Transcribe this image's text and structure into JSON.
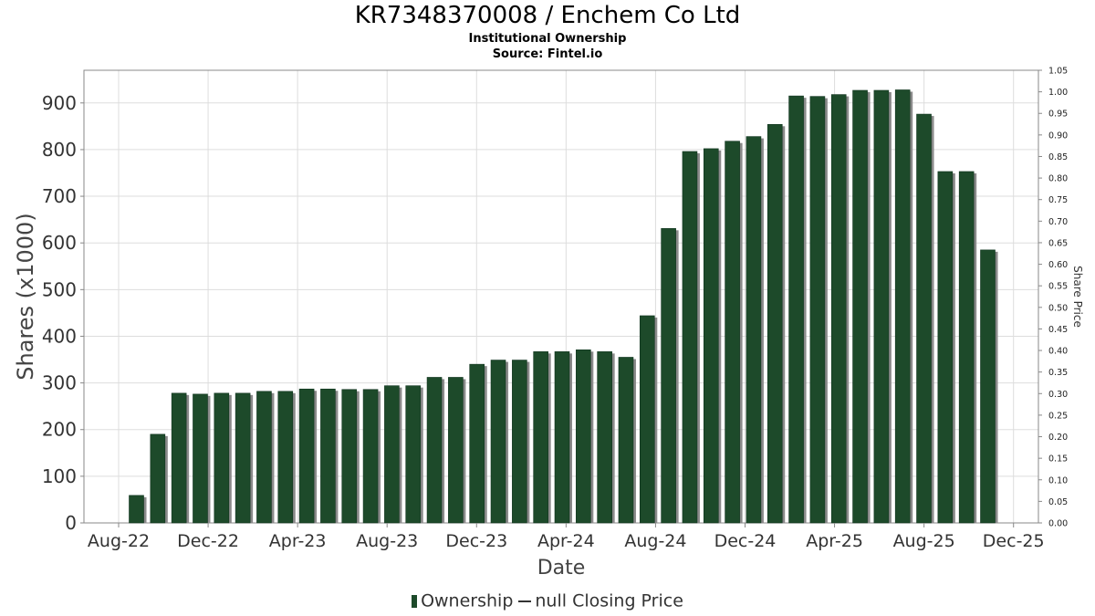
{
  "chart_data": {
    "type": "bar",
    "title": "KR7348370008 / Enchem Co Ltd",
    "subtitle": "Institutional Ownership",
    "source": "Source: Fintel.io",
    "xlabel": "Date",
    "ylabel": "Shares (x1000)",
    "y2label": "Share Price",
    "ylim": [
      0,
      970
    ],
    "y2lim": [
      0,
      1.05
    ],
    "yticks": [
      "0",
      "100",
      "200",
      "300",
      "400",
      "500",
      "600",
      "700",
      "800",
      "900"
    ],
    "y2ticks": [
      "0.00",
      "0.05",
      "0.10",
      "0.15",
      "0.20",
      "0.25",
      "0.30",
      "0.35",
      "0.40",
      "0.45",
      "0.50",
      "0.55",
      "0.60",
      "0.65",
      "0.70",
      "0.75",
      "0.80",
      "0.85",
      "0.90",
      "0.95",
      "1.00",
      "1.05"
    ],
    "xticks": [
      "Aug-22",
      "Dec-22",
      "Apr-23",
      "Aug-23",
      "Dec-23",
      "Apr-24",
      "Aug-24",
      "Dec-24",
      "Apr-25",
      "Aug-25",
      "Dec-25"
    ],
    "grid": true,
    "legend_position": "bottom",
    "colors": {
      "bar": "#1d4a2a",
      "bar_shadow": "#8a8a8a",
      "grid": "#dddddd",
      "axis": "#888888"
    },
    "series": [
      {
        "name": "Ownership",
        "values": [
          59,
          190,
          278,
          276,
          278,
          278,
          282,
          282,
          287,
          287,
          286,
          286,
          294,
          294,
          312,
          312,
          340,
          349,
          349,
          367,
          367,
          371,
          367,
          355,
          444,
          631,
          796,
          802,
          818,
          828,
          854,
          915,
          914,
          918,
          927,
          927,
          928,
          876,
          753,
          753,
          585
        ]
      },
      {
        "name": "null Closing Price",
        "values": []
      }
    ]
  }
}
